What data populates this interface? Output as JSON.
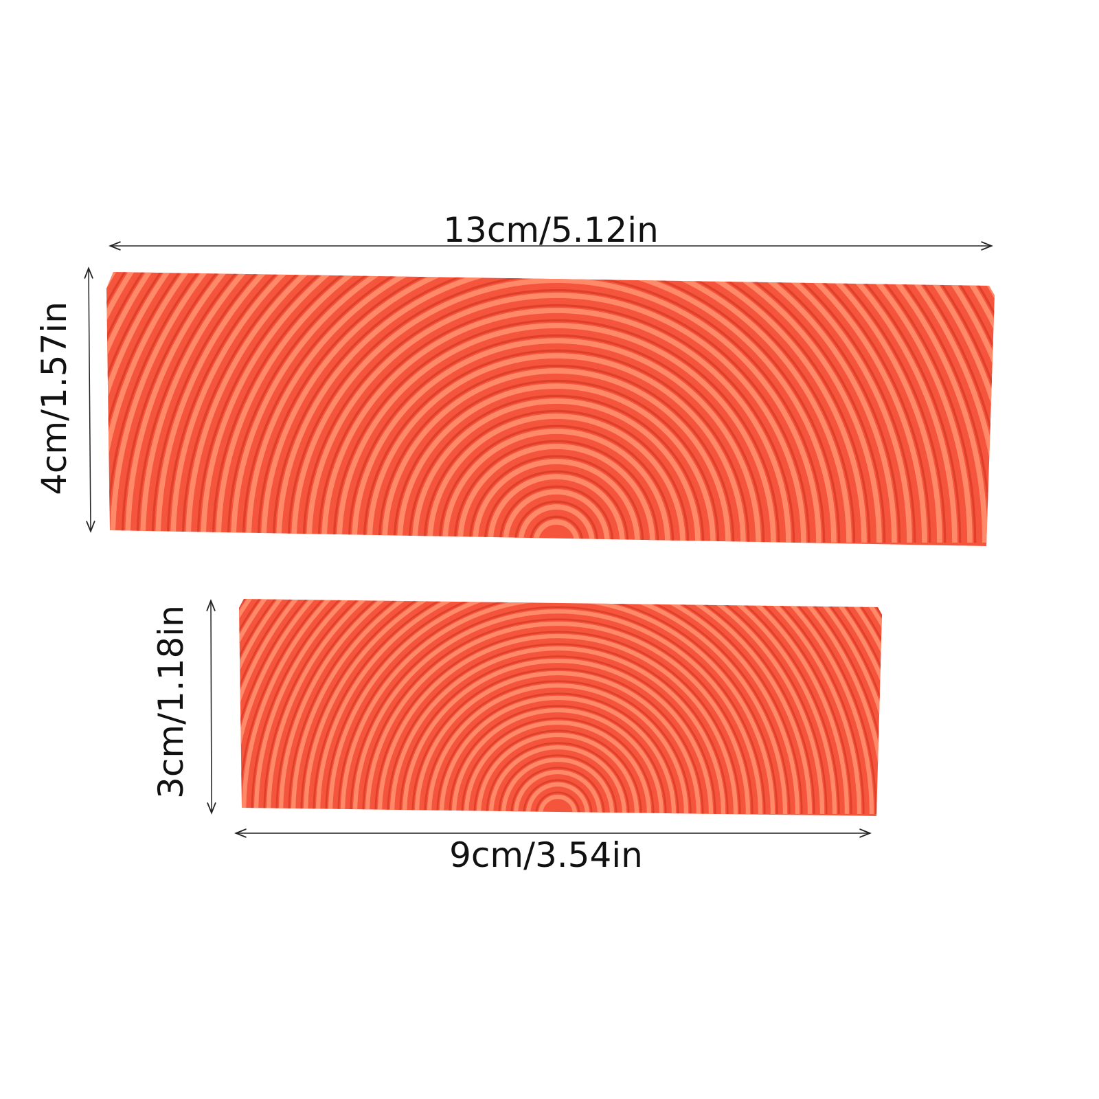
{
  "large_piece": {
    "width_label": "13cm/5.12in",
    "height_label": "4cm/1.57in"
  },
  "small_piece": {
    "width_label": "9cm/3.54in",
    "height_label": "3cm/1.18in"
  },
  "colors": {
    "rubber_base": "#f4553c",
    "rubber_ridge": "#ff8a6a",
    "rubber_groove": "#e0402a",
    "dimension_line": "#222222"
  }
}
